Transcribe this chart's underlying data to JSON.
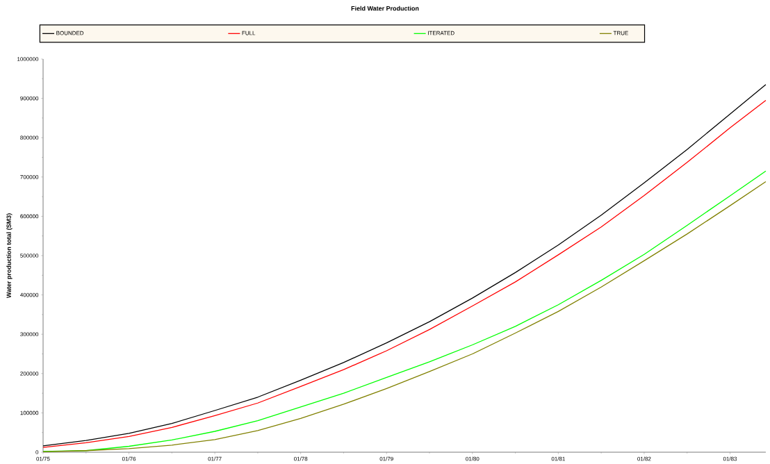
{
  "chart_data": {
    "type": "line",
    "title": "Field Water Production",
    "ylabel": "Water production total (SM3)",
    "x": [
      "1975-01",
      "1975-07",
      "1976-01",
      "1976-07",
      "1977-01",
      "1977-07",
      "1978-01",
      "1978-07",
      "1979-01",
      "1979-07",
      "1980-01",
      "1980-07",
      "1981-01",
      "1981-07",
      "1982-01",
      "1982-07",
      "1983-01",
      "1983-06"
    ],
    "series": [
      {
        "name": "BOUNDED",
        "color": "#000000",
        "values": [
          16000,
          30000,
          48000,
          73000,
          106000,
          140000,
          183000,
          228000,
          278000,
          332000,
          392000,
          457000,
          527000,
          603000,
          685000,
          770000,
          860000,
          935000
        ]
      },
      {
        "name": "FULL",
        "color": "#ff0000",
        "values": [
          12000,
          24000,
          40000,
          63000,
          93000,
          125000,
          167000,
          210000,
          258000,
          312000,
          372000,
          433000,
          502000,
          573000,
          653000,
          737000,
          825000,
          895000
        ]
      },
      {
        "name": "ITERATED",
        "color": "#00ff00",
        "values": [
          2000,
          4000,
          15000,
          31000,
          53000,
          80000,
          115000,
          150000,
          190000,
          230000,
          273000,
          320000,
          375000,
          437000,
          503000,
          577000,
          652000,
          715000
        ]
      },
      {
        "name": "TRUE",
        "color": "#808000",
        "values": [
          1000,
          4000,
          9000,
          18000,
          32000,
          55000,
          86000,
          122000,
          162000,
          205000,
          250000,
          303000,
          358000,
          420000,
          487000,
          555000,
          627000,
          688000
        ]
      }
    ],
    "xlim": [
      "1975-01",
      "1983-06"
    ],
    "xticks": [
      {
        "value": "1975-01",
        "label": "01/75"
      },
      {
        "value": "1976-01",
        "label": "01/76"
      },
      {
        "value": "1977-01",
        "label": "01/77"
      },
      {
        "value": "1978-01",
        "label": "01/78"
      },
      {
        "value": "1979-01",
        "label": "01/79"
      },
      {
        "value": "1980-01",
        "label": "01/80"
      },
      {
        "value": "1981-01",
        "label": "01/81"
      },
      {
        "value": "1982-01",
        "label": "01/82"
      },
      {
        "value": "1983-01",
        "label": "01/83"
      }
    ],
    "ylim": [
      0,
      1000000
    ],
    "yticks": [
      0,
      100000,
      200000,
      300000,
      400000,
      500000,
      600000,
      700000,
      800000,
      900000,
      1000000
    ],
    "legend": "top",
    "grid": false,
    "marker": "none",
    "line_style": "solid"
  }
}
